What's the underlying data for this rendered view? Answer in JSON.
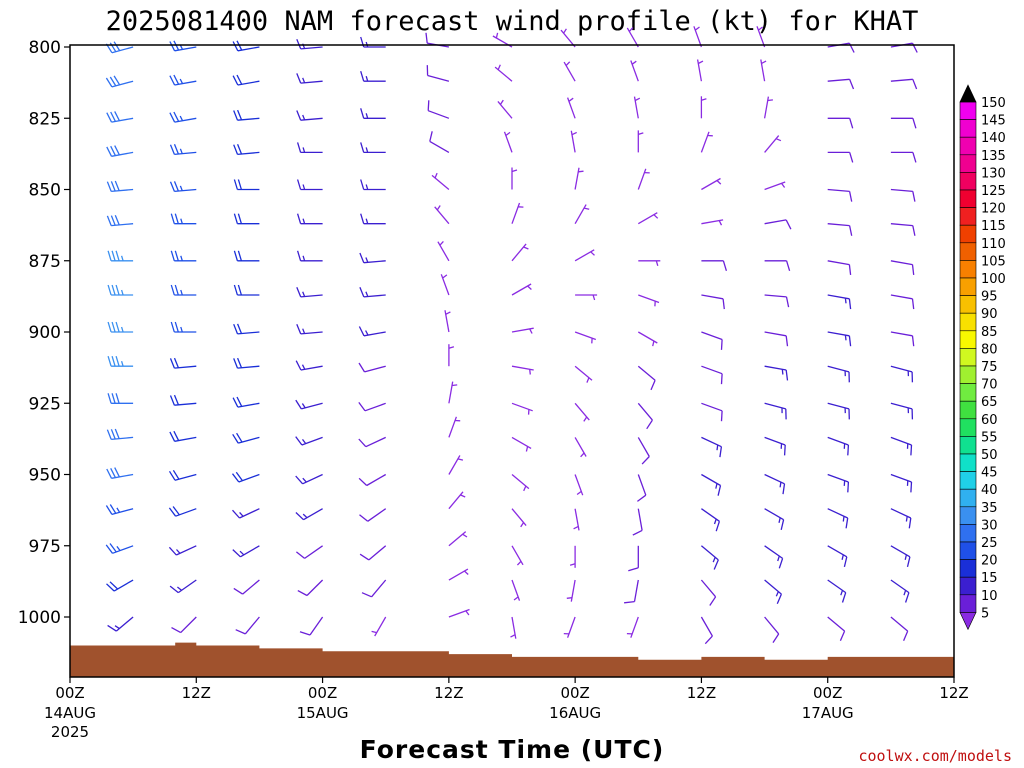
{
  "chart_data": {
    "type": "wind-barb-time-height",
    "title": "2025081400 NAM forecast wind profile (kt) for KHAT",
    "xlabel": "Forecast Time (UTC)",
    "ylabel": "",
    "y_axis": {
      "unit": "hPa",
      "inverted": true,
      "ylim": [
        1020,
        800
      ],
      "ticks": [
        {
          "value": 800,
          "label": "800"
        },
        {
          "value": 825,
          "label": "825"
        },
        {
          "value": 850,
          "label": "850"
        },
        {
          "value": 875,
          "label": "875"
        },
        {
          "value": 900,
          "label": "900"
        },
        {
          "value": 925,
          "label": "925"
        },
        {
          "value": 950,
          "label": "950"
        },
        {
          "value": 975,
          "label": "975"
        },
        {
          "value": 1000,
          "label": "1000"
        }
      ]
    },
    "x_axis": {
      "unit": "forecast hour",
      "xlim": [
        0,
        84
      ],
      "ticks": [
        {
          "hour": 0,
          "label": "00Z",
          "sub1": "14AUG",
          "sub2": "2025"
        },
        {
          "hour": 12,
          "label": "12Z",
          "sub1": "",
          "sub2": ""
        },
        {
          "hour": 24,
          "label": "00Z",
          "sub1": "15AUG",
          "sub2": ""
        },
        {
          "hour": 36,
          "label": "12Z",
          "sub1": "",
          "sub2": ""
        },
        {
          "hour": 48,
          "label": "00Z",
          "sub1": "16AUG",
          "sub2": ""
        },
        {
          "hour": 60,
          "label": "12Z",
          "sub1": "",
          "sub2": ""
        },
        {
          "hour": 72,
          "label": "00Z",
          "sub1": "17AUG",
          "sub2": ""
        },
        {
          "hour": 84,
          "label": "12Z",
          "sub1": "",
          "sub2": ""
        }
      ]
    },
    "grid": false,
    "pressure_levels": [
      800,
      812,
      825,
      837,
      850,
      862,
      875,
      887,
      900,
      912,
      925,
      937,
      950,
      962,
      975,
      987,
      1000
    ],
    "wind_columns": [
      {
        "hour": 0,
        "pmax": 1010,
        "dir": [
          255,
          255,
          260,
          260,
          265,
          265,
          270,
          270,
          275,
          275,
          275,
          270,
          265,
          260,
          255,
          245,
          235
        ],
        "spd": [
          30,
          30,
          30,
          30,
          30,
          30,
          35,
          35,
          35,
          35,
          35,
          30,
          30,
          30,
          25,
          20,
          15
        ]
      },
      {
        "hour": 6,
        "pmax": 1008,
        "dir": [
          255,
          255,
          260,
          260,
          265,
          265,
          270,
          270,
          270,
          270,
          270,
          265,
          260,
          255,
          250,
          240,
          230
        ],
        "spd": [
          30,
          30,
          30,
          30,
          30,
          30,
          35,
          35,
          35,
          35,
          30,
          30,
          30,
          25,
          25,
          20,
          15
        ]
      },
      {
        "hour": 12,
        "pmax": 1010,
        "dir": [
          260,
          260,
          260,
          265,
          265,
          270,
          270,
          270,
          270,
          265,
          265,
          260,
          255,
          250,
          245,
          235,
          225
        ],
        "spd": [
          25,
          25,
          25,
          25,
          25,
          25,
          25,
          25,
          25,
          20,
          20,
          20,
          20,
          20,
          15,
          15,
          10
        ]
      },
      {
        "hour": 18,
        "pmax": 1012,
        "dir": [
          260,
          260,
          265,
          265,
          270,
          270,
          270,
          270,
          265,
          265,
          260,
          255,
          250,
          245,
          240,
          230,
          220
        ],
        "spd": [
          20,
          20,
          20,
          20,
          20,
          20,
          20,
          20,
          20,
          20,
          20,
          20,
          20,
          15,
          15,
          10,
          10
        ]
      },
      {
        "hour": 24,
        "pmax": 1012,
        "dir": [
          265,
          265,
          265,
          270,
          270,
          270,
          270,
          265,
          265,
          260,
          255,
          250,
          245,
          240,
          235,
          225,
          215
        ],
        "spd": [
          15,
          15,
          15,
          15,
          15,
          15,
          15,
          15,
          15,
          15,
          15,
          15,
          15,
          15,
          10,
          10,
          10
        ]
      },
      {
        "hour": 30,
        "pmax": 1013,
        "dir": [
          270,
          270,
          270,
          270,
          270,
          270,
          265,
          265,
          260,
          255,
          250,
          245,
          240,
          235,
          230,
          220,
          210
        ],
        "spd": [
          15,
          15,
          15,
          15,
          15,
          15,
          15,
          15,
          15,
          10,
          10,
          10,
          10,
          10,
          10,
          10,
          5
        ]
      },
      {
        "hour": 36,
        "pmax": 1014,
        "dir": [
          280,
          285,
          290,
          300,
          310,
          320,
          330,
          340,
          350,
          0,
          10,
          20,
          30,
          40,
          50,
          60,
          70
        ],
        "spd": [
          10,
          10,
          10,
          10,
          5,
          5,
          5,
          5,
          5,
          5,
          5,
          5,
          5,
          5,
          5,
          5,
          5
        ]
      },
      {
        "hour": 42,
        "pmax": 1014,
        "dir": [
          300,
          310,
          320,
          340,
          0,
          20,
          40,
          60,
          80,
          100,
          110,
          120,
          130,
          140,
          150,
          160,
          170
        ],
        "spd": [
          5,
          5,
          5,
          5,
          5,
          5,
          5,
          5,
          5,
          5,
          5,
          5,
          5,
          5,
          5,
          5,
          5
        ]
      },
      {
        "hour": 48,
        "pmax": 1014,
        "dir": [
          320,
          330,
          340,
          350,
          10,
          30,
          60,
          90,
          110,
          130,
          140,
          150,
          160,
          170,
          180,
          190,
          200
        ],
        "spd": [
          5,
          5,
          5,
          5,
          5,
          5,
          5,
          5,
          5,
          5,
          5,
          5,
          5,
          5,
          5,
          5,
          5
        ]
      },
      {
        "hour": 54,
        "pmax": 1013,
        "dir": [
          330,
          340,
          350,
          0,
          20,
          60,
          90,
          110,
          120,
          130,
          140,
          150,
          160,
          170,
          180,
          190,
          200
        ],
        "spd": [
          5,
          5,
          5,
          5,
          5,
          5,
          5,
          5,
          5,
          10,
          10,
          10,
          10,
          10,
          10,
          10,
          5
        ]
      },
      {
        "hour": 60,
        "pmax": 1012,
        "dir": [
          340,
          350,
          0,
          20,
          60,
          80,
          90,
          100,
          110,
          110,
          110,
          115,
          120,
          125,
          130,
          140,
          150
        ],
        "spd": [
          5,
          5,
          5,
          5,
          5,
          5,
          10,
          10,
          10,
          10,
          10,
          15,
          15,
          15,
          15,
          10,
          10
        ]
      },
      {
        "hour": 66,
        "pmax": 1012,
        "dir": [
          340,
          350,
          10,
          40,
          70,
          80,
          90,
          95,
          100,
          100,
          105,
          110,
          115,
          120,
          125,
          130,
          140
        ],
        "spd": [
          5,
          5,
          5,
          5,
          5,
          10,
          10,
          10,
          10,
          15,
          15,
          15,
          15,
          15,
          15,
          15,
          10
        ]
      },
      {
        "hour": 72,
        "pmax": 1012,
        "dir": [
          80,
          85,
          90,
          90,
          95,
          95,
          100,
          100,
          100,
          105,
          105,
          110,
          110,
          115,
          120,
          125,
          130
        ],
        "spd": [
          10,
          10,
          10,
          10,
          10,
          10,
          10,
          15,
          15,
          15,
          15,
          15,
          15,
          15,
          15,
          15,
          10
        ]
      },
      {
        "hour": 78,
        "pmax": 1012,
        "dir": [
          80,
          85,
          90,
          90,
          95,
          95,
          100,
          100,
          100,
          105,
          105,
          110,
          110,
          115,
          120,
          125,
          130
        ],
        "spd": [
          10,
          10,
          10,
          10,
          10,
          10,
          10,
          10,
          10,
          15,
          15,
          15,
          15,
          15,
          15,
          15,
          10
        ]
      },
      {
        "hour": 84,
        "pmax": 1012,
        "dir": [
          80,
          85,
          90,
          90,
          95,
          95,
          100,
          100,
          100,
          105,
          105,
          110,
          110,
          115,
          120,
          125,
          130
        ],
        "spd": [
          10,
          10,
          10,
          10,
          10,
          10,
          10,
          10,
          10,
          10,
          15,
          15,
          15,
          15,
          15,
          15,
          10
        ]
      }
    ],
    "surface": {
      "color": "#a0522d",
      "points": [
        {
          "hour": 0,
          "pressure": 1010
        },
        {
          "hour": 10,
          "pressure": 1009
        },
        {
          "hour": 12,
          "pressure": 1010
        },
        {
          "hour": 18,
          "pressure": 1011
        },
        {
          "hour": 24,
          "pressure": 1012
        },
        {
          "hour": 36,
          "pressure": 1013
        },
        {
          "hour": 42,
          "pressure": 1014
        },
        {
          "hour": 48,
          "pressure": 1014
        },
        {
          "hour": 54,
          "pressure": 1015
        },
        {
          "hour": 60,
          "pressure": 1014
        },
        {
          "hour": 66,
          "pressure": 1015
        },
        {
          "hour": 72,
          "pressure": 1014
        },
        {
          "hour": 78,
          "pressure": 1014
        },
        {
          "hour": 84,
          "pressure": 1013
        }
      ]
    },
    "colorbar": {
      "unit": "kt",
      "levels": [
        5,
        10,
        15,
        20,
        25,
        30,
        35,
        40,
        45,
        50,
        55,
        60,
        65,
        70,
        75,
        80,
        85,
        90,
        95,
        100,
        105,
        110,
        115,
        120,
        125,
        130,
        135,
        140,
        145,
        150
      ],
      "colors": [
        "#8a2be2",
        "#6a1fd8",
        "#3b1fd0",
        "#1a2fd8",
        "#1f50e8",
        "#2f70f0",
        "#3a90f0",
        "#30b0f0",
        "#20d0e8",
        "#10e0c8",
        "#10e090",
        "#20e060",
        "#40e040",
        "#70ec40",
        "#a0f030",
        "#d0f820",
        "#f8f800",
        "#f8e000",
        "#f8c000",
        "#f8a000",
        "#f88000",
        "#f06000",
        "#f04000",
        "#f02020",
        "#f00030",
        "#f00060",
        "#f00090",
        "#f000b0",
        "#f000d0",
        "#f000f0"
      ]
    },
    "credit": "coolwx.com/models"
  }
}
